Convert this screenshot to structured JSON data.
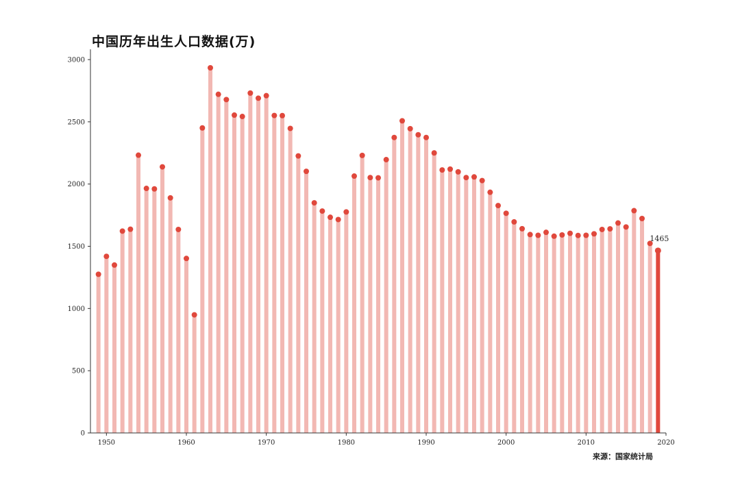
{
  "title": "中国历年出生人口数据(万)",
  "source": "来源：国家统计局",
  "colors": {
    "bar": "#f2b8b3",
    "bar_highlight": "#e0483c",
    "point": "#e0483c",
    "axis": "#333333"
  },
  "chart_data": {
    "type": "bar",
    "title": "中国历年出生人口数据(万)",
    "xlabel": "",
    "ylabel": "",
    "xlim": [
      1948,
      2020
    ],
    "ylim": [
      0,
      3000
    ],
    "x_ticks": [
      "1950",
      "1960",
      "1970",
      "1980",
      "1990",
      "2000",
      "2010",
      "2020"
    ],
    "y_ticks": [
      "0",
      "500",
      "1000",
      "1500",
      "2000",
      "2500",
      "3000"
    ],
    "grid": false,
    "legend": "none",
    "highlight": {
      "year": 2019,
      "label": "1465"
    },
    "x": [
      1949,
      1950,
      1951,
      1952,
      1953,
      1954,
      1955,
      1956,
      1957,
      1958,
      1959,
      1960,
      1961,
      1962,
      1963,
      1964,
      1965,
      1966,
      1967,
      1968,
      1969,
      1970,
      1971,
      1972,
      1973,
      1974,
      1975,
      1976,
      1977,
      1978,
      1979,
      1980,
      1981,
      1982,
      1983,
      1984,
      1985,
      1986,
      1987,
      1988,
      1989,
      1990,
      1991,
      1992,
      1993,
      1994,
      1995,
      1996,
      1997,
      1998,
      1999,
      2000,
      2001,
      2002,
      2003,
      2004,
      2005,
      2006,
      2007,
      2008,
      2009,
      2010,
      2011,
      2012,
      2013,
      2014,
      2015,
      2016,
      2017,
      2018,
      2019
    ],
    "values": [
      1275,
      1419,
      1349,
      1622,
      1637,
      2232,
      1965,
      1961,
      2138,
      1889,
      1635,
      1402,
      949,
      2451,
      2934,
      2721,
      2679,
      2554,
      2543,
      2731,
      2690,
      2710,
      2551,
      2550,
      2447,
      2226,
      2102,
      1849,
      1783,
      1733,
      1715,
      1776,
      2064,
      2230,
      2052,
      2050,
      2196,
      2374,
      2508,
      2445,
      2396,
      2374,
      2250,
      2113,
      2120,
      2098,
      2052,
      2057,
      2028,
      1934,
      1827,
      1765,
      1696,
      1641,
      1594,
      1588,
      1612,
      1581,
      1591,
      1604,
      1587,
      1588,
      1600,
      1635,
      1640,
      1687,
      1655,
      1786,
      1723,
      1523,
      1465
    ]
  }
}
